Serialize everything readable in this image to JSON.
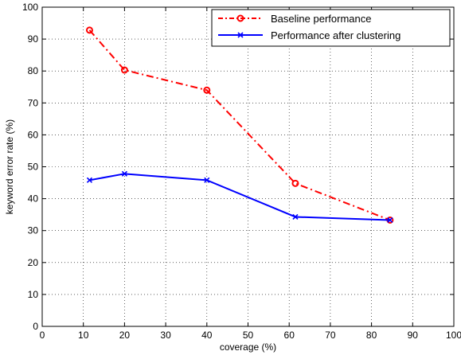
{
  "chart_data": {
    "type": "line",
    "title": "",
    "xlabel": "coverage (%)",
    "ylabel": "keyword error rate (%)",
    "xlim": [
      0,
      100
    ],
    "ylim": [
      0,
      100
    ],
    "x_ticks": [
      0,
      10,
      20,
      30,
      40,
      50,
      60,
      70,
      80,
      90,
      100
    ],
    "y_ticks": [
      0,
      10,
      20,
      30,
      40,
      50,
      60,
      70,
      80,
      90,
      100
    ],
    "grid": true,
    "legend_position": "top-right",
    "series": [
      {
        "name": "Baseline performance",
        "color": "#ff0000",
        "line_style": "dash-dot",
        "marker": "circle",
        "x": [
          11.5,
          20,
          40,
          61.5,
          84.5
        ],
        "y": [
          92.8,
          80.3,
          74,
          44.8,
          33.3
        ]
      },
      {
        "name": "Performance after clustering",
        "color": "#0000ff",
        "line_style": "solid",
        "marker": "x",
        "x": [
          11.5,
          20,
          40,
          61.5,
          84.5
        ],
        "y": [
          45.8,
          47.8,
          45.8,
          34.3,
          33.3
        ]
      }
    ]
  }
}
